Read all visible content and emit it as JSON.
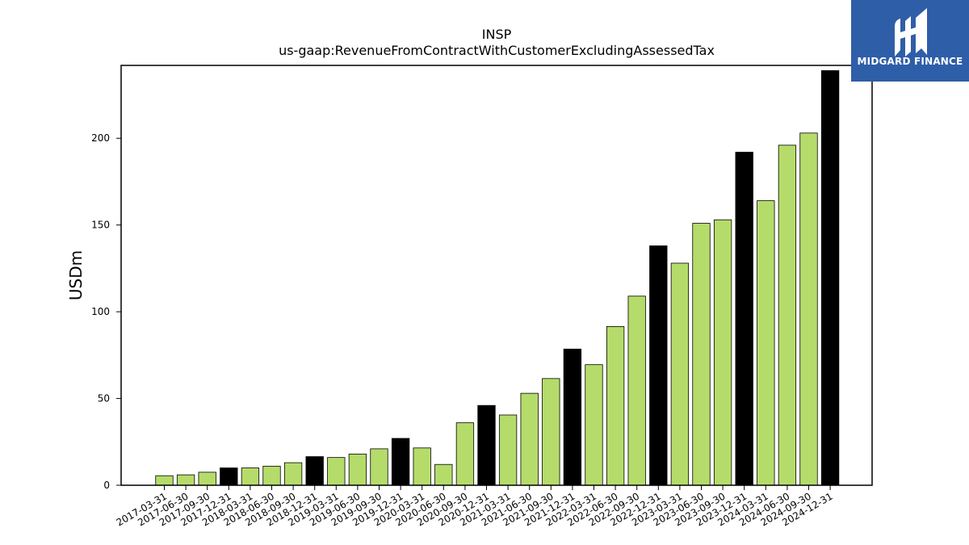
{
  "chart_data": {
    "type": "bar",
    "title": "INSP",
    "subtitle": "us-gaap:RevenueFromContractWithCustomerExcludingAssessedTax",
    "ylabel": "USDm",
    "xlabel": "",
    "ylim": [
      0,
      242
    ],
    "yticks": [
      0,
      50,
      100,
      150,
      200
    ],
    "grid": false,
    "colors": {
      "quarter": "#b5dc6a",
      "year_end": "#000000",
      "edge": "#000000"
    },
    "categories": [
      "2017-03-31",
      "2017-06-30",
      "2017-09-30",
      "2017-12-31",
      "2018-03-31",
      "2018-06-30",
      "2018-09-30",
      "2018-12-31",
      "2019-03-31",
      "2019-06-30",
      "2019-09-30",
      "2019-12-31",
      "2020-03-31",
      "2020-06-30",
      "2020-09-30",
      "2020-12-31",
      "2021-03-31",
      "2021-06-30",
      "2021-09-30",
      "2021-12-31",
      "2022-03-31",
      "2022-06-30",
      "2022-09-30",
      "2022-12-31",
      "2023-03-31",
      "2023-06-30",
      "2023-09-30",
      "2023-12-31",
      "2024-03-31",
      "2024-06-30",
      "2024-09-30",
      "2024-12-31"
    ],
    "values": [
      5.5,
      6,
      7.5,
      10,
      10,
      11,
      13,
      16.5,
      16,
      18,
      21,
      27,
      21.5,
      12,
      36,
      46,
      40.5,
      53,
      61.5,
      78.5,
      69.5,
      91.5,
      109,
      138,
      128,
      151,
      153,
      192,
      164,
      196,
      203,
      239
    ]
  },
  "logo": {
    "text": "MIDGARD FINANCE",
    "icon": "midgard-logo-icon",
    "background": "#2f5ea8"
  }
}
